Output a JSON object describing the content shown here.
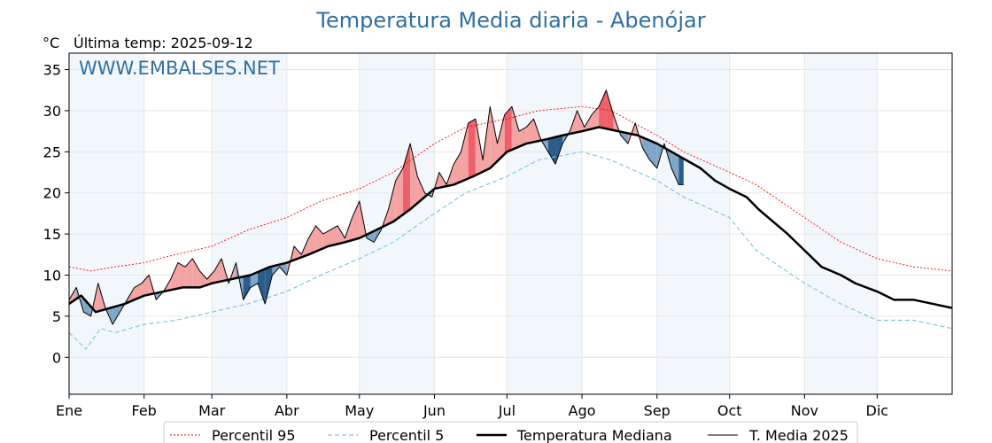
{
  "chart_data": {
    "type": "line",
    "title": "Temperatura Media diaria - Abenójar",
    "unit_label": "°C",
    "last_temp_label": "Última temp: 2025-09-12",
    "watermark": "WWW.EMBALSES.NET",
    "ylim": [
      -4.5,
      37
    ],
    "yticks": [
      0,
      5,
      10,
      15,
      20,
      25,
      30,
      35
    ],
    "xlim": [
      1,
      366
    ],
    "months": [
      {
        "label": "Ene",
        "day": 1
      },
      {
        "label": "Feb",
        "day": 32
      },
      {
        "label": "Mar",
        "day": 60
      },
      {
        "label": "Abr",
        "day": 91
      },
      {
        "label": "May",
        "day": 121
      },
      {
        "label": "Jun",
        "day": 152
      },
      {
        "label": "Jul",
        "day": 182
      },
      {
        "label": "Ago",
        "day": 213
      },
      {
        "label": "Sep",
        "day": 244
      },
      {
        "label": "Oct",
        "day": 274
      },
      {
        "label": "Nov",
        "day": 305
      },
      {
        "label": "Dic",
        "day": 335
      }
    ],
    "grid": true,
    "legend_position": "bottom",
    "colors": {
      "p95": "#ff0000",
      "p5": "#7ec8e3",
      "median": "#000000",
      "media2025": "#000000",
      "above_fill": "#f4a3a3",
      "above_strong": "#f0606a",
      "below_fill": "#7fa6c8",
      "below_strong": "#2c5d8a",
      "band": "#f2f7fc"
    },
    "series": [
      {
        "name": "Percentil 95",
        "key": "p95",
        "x": [
          1,
          10,
          20,
          32,
          45,
          60,
          75,
          91,
          105,
          121,
          135,
          152,
          165,
          182,
          195,
          213,
          225,
          244,
          255,
          274,
          285,
          305,
          320,
          335,
          350,
          366
        ],
        "y": [
          11.0,
          10.5,
          11.0,
          11.5,
          12.5,
          13.5,
          15.5,
          17.0,
          19.0,
          20.5,
          22.5,
          26.0,
          28.0,
          29.0,
          30.0,
          30.5,
          30.0,
          27.0,
          25.0,
          22.5,
          21.0,
          17.0,
          14.0,
          12.0,
          11.0,
          10.5
        ]
      },
      {
        "name": "Percentil 5",
        "key": "p5",
        "x": [
          1,
          8,
          14,
          20,
          32,
          45,
          60,
          75,
          91,
          105,
          121,
          135,
          152,
          165,
          182,
          195,
          213,
          225,
          244,
          255,
          274,
          285,
          305,
          320,
          335,
          350,
          366
        ],
        "y": [
          3.0,
          1.0,
          3.5,
          3.0,
          4.0,
          4.5,
          5.5,
          6.5,
          8.0,
          10.0,
          12.0,
          14.0,
          17.5,
          20.0,
          22.0,
          24.0,
          25.0,
          24.0,
          21.5,
          19.5,
          17.0,
          13.0,
          9.0,
          6.5,
          4.5,
          4.5,
          3.5
        ]
      },
      {
        "name": "Temperatura Mediana",
        "key": "median",
        "x": [
          1,
          6,
          12,
          18,
          24,
          32,
          40,
          48,
          55,
          60,
          68,
          76,
          84,
          91,
          100,
          108,
          115,
          121,
          128,
          135,
          142,
          152,
          160,
          168,
          175,
          182,
          190,
          198,
          205,
          213,
          220,
          228,
          236,
          244,
          250,
          256,
          262,
          268,
          274,
          281,
          286,
          292,
          298,
          305,
          312,
          320,
          326,
          335,
          342,
          350,
          358,
          366
        ],
        "y": [
          6.5,
          7.5,
          5.5,
          6.0,
          6.5,
          7.5,
          8.0,
          8.5,
          8.5,
          9.0,
          9.5,
          10.0,
          11.0,
          11.5,
          12.5,
          13.5,
          14.0,
          14.5,
          15.5,
          16.5,
          18.0,
          20.5,
          21.0,
          22.0,
          23.0,
          25.0,
          26.0,
          26.5,
          27.0,
          27.5,
          28.0,
          27.5,
          27.0,
          26.0,
          25.0,
          24.0,
          23.0,
          21.5,
          20.5,
          19.5,
          18.0,
          16.5,
          15.0,
          13.0,
          11.0,
          10.0,
          9.0,
          8.0,
          7.0,
          7.0,
          6.5,
          6.0
        ]
      },
      {
        "name": "T. Media 2025",
        "key": "media2025",
        "x": [
          1,
          4,
          7,
          10,
          13,
          16,
          19,
          22,
          25,
          28,
          31,
          34,
          37,
          40,
          43,
          46,
          49,
          52,
          55,
          58,
          61,
          64,
          67,
          70,
          73,
          76,
          79,
          82,
          85,
          88,
          91,
          94,
          97,
          100,
          103,
          106,
          109,
          112,
          115,
          118,
          121,
          124,
          127,
          130,
          133,
          136,
          139,
          142,
          145,
          148,
          151,
          154,
          157,
          160,
          163,
          166,
          169,
          172,
          175,
          178,
          181,
          184,
          187,
          190,
          193,
          196,
          199,
          202,
          205,
          208,
          211,
          214,
          217,
          220,
          223,
          226,
          229,
          232,
          235,
          238,
          241,
          244,
          247,
          250,
          253,
          255
        ],
        "y": [
          7.0,
          8.5,
          5.5,
          5.0,
          9.0,
          6.0,
          4.0,
          5.5,
          7.0,
          8.5,
          9.0,
          10.0,
          7.0,
          8.0,
          9.5,
          11.5,
          11.0,
          12.0,
          10.5,
          9.5,
          10.5,
          12.0,
          9.0,
          11.5,
          7.0,
          8.5,
          9.0,
          6.5,
          10.0,
          11.0,
          10.0,
          13.5,
          12.5,
          14.5,
          16.0,
          15.0,
          15.5,
          16.0,
          14.5,
          17.0,
          19.0,
          14.5,
          14.0,
          15.5,
          18.0,
          21.5,
          23.0,
          26.0,
          22.0,
          20.0,
          19.5,
          22.5,
          21.0,
          23.5,
          25.0,
          28.5,
          29.0,
          24.0,
          30.5,
          26.0,
          29.5,
          30.5,
          27.5,
          28.0,
          29.0,
          26.5,
          25.0,
          23.5,
          26.0,
          27.5,
          30.0,
          28.0,
          29.5,
          30.5,
          32.5,
          29.5,
          27.0,
          26.0,
          28.5,
          25.5,
          24.0,
          23.0,
          26.0,
          23.0,
          21.0,
          21.0
        ]
      }
    ]
  }
}
